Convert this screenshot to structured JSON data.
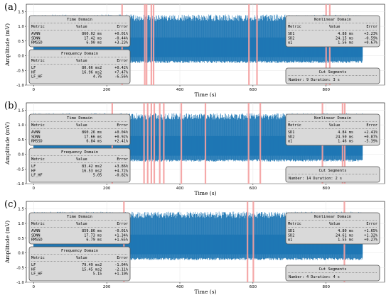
{
  "panels": [
    {
      "label": "(a)",
      "time_domain": {
        "title": "Time Domain",
        "rows": [
          {
            "metric": "AVNN",
            "value": "860.02 ms",
            "error": "+0.01%"
          },
          {
            "metric": "SDNN",
            "value": "17.42 ms",
            "error": "-0.44%"
          },
          {
            "metric": "RMSSD",
            "value": "6.90 ms",
            "error": "+3.23%"
          }
        ]
      },
      "frequency_domain": {
        "title": "Frequency Domain",
        "rows": [
          {
            "metric": "LF",
            "value": "80.66 ms2",
            "error": "+0.42%"
          },
          {
            "metric": "HF",
            "value": "16.96 ms2",
            "error": "+7.47%"
          },
          {
            "metric": "LF_HF",
            "value": "4.76",
            "error": "-6.56%"
          }
        ]
      },
      "nonlinear_domain": {
        "title": "Nonlinear Domain",
        "rows": [
          {
            "metric": "SD1",
            "value": "4.88 ms",
            "error": "+3.23%"
          },
          {
            "metric": "SD2",
            "value": "24.15 ms",
            "error": "-0.59%"
          },
          {
            "metric": "α1",
            "value": "1.56 ms",
            "error": "+0.67%"
          }
        ]
      },
      "cut_segments": {
        "title": "Cut Segments",
        "text": "Number: 9  Duration: 3 s"
      }
    },
    {
      "label": "(b)",
      "time_domain": {
        "title": "Time Domain",
        "rows": [
          {
            "metric": "AVNN",
            "value": "860.26 ms",
            "error": "+0.04%"
          },
          {
            "metric": "SDNN",
            "value": "17.66 ms",
            "error": "+0.92%"
          },
          {
            "metric": "RMSSD",
            "value": "6.84 ms",
            "error": "+2.41%"
          }
        ]
      },
      "frequency_domain": {
        "title": "Frequency Domain",
        "rows": [
          {
            "metric": "LF",
            "value": "83.42 ms2",
            "error": "+3.86%"
          },
          {
            "metric": "HF",
            "value": "16.53 ms2",
            "error": "+4.72%"
          },
          {
            "metric": "LF_HF",
            "value": "5.05",
            "error": "-0.82%"
          }
        ]
      },
      "nonlinear_domain": {
        "title": "Nonlinear Domain",
        "rows": [
          {
            "metric": "SD1",
            "value": "4.84 ms",
            "error": "+2.41%"
          },
          {
            "metric": "SD2",
            "value": "24.50 ms",
            "error": "+0.87%"
          },
          {
            "metric": "α1",
            "value": "1.46 ms",
            "error": "-5.39%"
          }
        ]
      },
      "cut_segments": {
        "title": "Cut Segments",
        "text": "Number: 14  Duration: 2 s"
      }
    },
    {
      "label": "(c)",
      "time_domain": {
        "title": "Time Domain",
        "rows": [
          {
            "metric": "AVNN",
            "value": "859.86 ms",
            "error": "-0.01%"
          },
          {
            "metric": "SDNN",
            "value": "17.73 ms",
            "error": "+1.34%"
          },
          {
            "metric": "RMSSD",
            "value": "6.79 ms",
            "error": "+1.65%"
          }
        ]
      },
      "frequency_domain": {
        "title": "Frequency Domain",
        "rows": [
          {
            "metric": "LF",
            "value": "79.49 ms2",
            "error": "-1.04%"
          },
          {
            "metric": "HF",
            "value": "15.45 ms2",
            "error": "-2.11%"
          },
          {
            "metric": "LF_HF",
            "value": "5.15",
            "error": "+1.10%"
          }
        ]
      },
      "nonlinear_domain": {
        "title": "Nonlinear Domain",
        "rows": [
          {
            "metric": "SD1",
            "value": "4.80 ms",
            "error": "+1.65%"
          },
          {
            "metric": "SD2",
            "value": "24.61 ms",
            "error": "+1.32%"
          },
          {
            "metric": "α1",
            "value": "1.55 ms",
            "error": "+0.27%"
          }
        ]
      },
      "cut_segments": {
        "title": "Cut Segments",
        "text": "Number: 4  Duration: 4 s"
      }
    }
  ],
  "table_headers": {
    "metric": "Metric",
    "value": "Value",
    "error": "Error"
  },
  "colors": {
    "signal": "#1f77b4",
    "cut_segment": "#f4a0a0",
    "box_fill": "#d9d9d9",
    "box_stroke": "#555555"
  },
  "chart_data": [
    {
      "type": "line",
      "xlabel": "Time (s)",
      "ylabel": "Amplitude (mV)",
      "xlim": [
        -20,
        960
      ],
      "ylim": [
        -1.0,
        1.75
      ],
      "xticks": [
        0,
        200,
        400,
        600,
        800
      ],
      "yticks": [
        -1.0,
        -0.5,
        0.0,
        0.5,
        1.0,
        1.5
      ],
      "signal_x_range": [
        0,
        900
      ],
      "signal_band": {
        "min": -0.25,
        "max": 1.4
      },
      "grid": true,
      "cut_segments_s": [
        242,
        304,
        309,
        322,
        328,
        589,
        611,
        800,
        810
      ]
    },
    {
      "type": "line",
      "xlabel": "Time (s)",
      "ylabel": "Amplitude (mV)",
      "xlim": [
        -20,
        960
      ],
      "ylim": [
        -1.0,
        1.75
      ],
      "xticks": [
        0,
        200,
        400,
        600,
        800
      ],
      "yticks": [
        -1.0,
        -0.5,
        0.0,
        0.5,
        1.0,
        1.5
      ],
      "signal_x_range": [
        0,
        900
      ],
      "signal_band": {
        "min": -0.25,
        "max": 1.4
      },
      "grid": true,
      "cut_segments_s": [
        215,
        302,
        312,
        322,
        330,
        345,
        356,
        404,
        470,
        588,
        620,
        790,
        845,
        851
      ]
    },
    {
      "type": "line",
      "xlabel": "Time (s)",
      "ylabel": "Amplitude (mV)",
      "xlim": [
        -20,
        960
      ],
      "ylim": [
        -1.0,
        1.75
      ],
      "xticks": [
        0,
        200,
        400,
        600,
        800
      ],
      "yticks": [
        -1.0,
        -0.5,
        0.0,
        0.5,
        1.0,
        1.5
      ],
      "signal_x_range": [
        0,
        900
      ],
      "signal_band": {
        "min": -0.25,
        "max": 1.4
      },
      "grid": true,
      "cut_segments_s": [
        247,
        585,
        601,
        850
      ]
    }
  ]
}
